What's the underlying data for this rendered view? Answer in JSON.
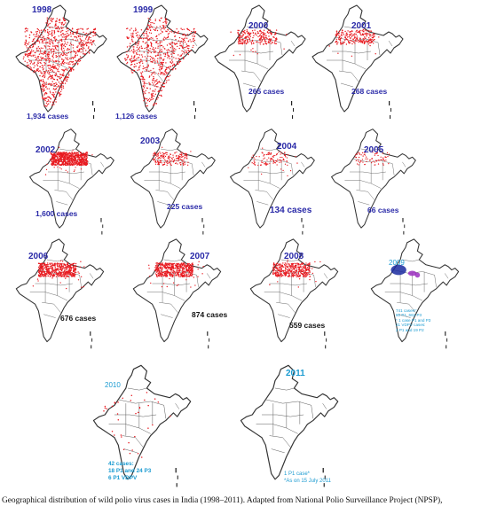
{
  "panels": [
    {
      "id": "1998",
      "year": "1998",
      "cases": "1,934 cases",
      "intensity": 1.0,
      "spread": "all"
    },
    {
      "id": "1999",
      "year": "1999",
      "cases": "1,126 cases",
      "intensity": 0.75,
      "spread": "all"
    },
    {
      "id": "2000",
      "year": "2000",
      "cases": "265 cases",
      "intensity": 0.25,
      "spread": "north"
    },
    {
      "id": "2001",
      "year": "2001",
      "cases": "268 cases",
      "intensity": 0.25,
      "spread": "north"
    },
    {
      "id": "2002",
      "year": "2002",
      "cases": "1,600 cases",
      "intensity": 0.9,
      "spread": "north"
    },
    {
      "id": "2003",
      "year": "2003",
      "cases": "225 cases",
      "intensity": 0.2,
      "spread": "north"
    },
    {
      "id": "2004",
      "year": "2004",
      "cases": "134 cases",
      "intensity": 0.12,
      "spread": "north"
    },
    {
      "id": "2005",
      "year": "2005",
      "cases": "66 cases",
      "intensity": 0.08,
      "spread": "north"
    },
    {
      "id": "2006",
      "year": "2006",
      "cases": "676 cases",
      "intensity": 0.6,
      "spread": "north"
    },
    {
      "id": "2007",
      "year": "2007",
      "cases": "874 cases",
      "intensity": 0.6,
      "spread": "north"
    },
    {
      "id": "2008",
      "year": "2008",
      "cases": "559 cases",
      "intensity": 0.45,
      "spread": "north"
    },
    {
      "id": "2009",
      "year": "2009",
      "cases": "",
      "intensity": 0.0,
      "spread": "blue",
      "note_lines": [
        "741 cases*:",
        "80 P1, 662 P3",
        "* 1 case P1 and P3",
        "21 VDPV cases:",
        "2 P1 and 19 P2"
      ]
    },
    {
      "id": "2010",
      "year": "2010",
      "cases": "",
      "intensity": 0.04,
      "spread": "sparse",
      "note_lines": [
        "42 cases:",
        "18 P1 and 24 P3",
        "6 P1 VDPV"
      ]
    },
    {
      "id": "2011",
      "year": "2011",
      "cases": "",
      "intensity": 0.0,
      "spread": "none",
      "note_lines": [
        "1 P1 case*",
        "*As on 15 July 2011"
      ]
    }
  ],
  "caption": "Geographical distribution of wild polio virus cases in India (1998–2011). Adapted from National Polio Surveillance Project (NPSP),",
  "colors": {
    "case_dot": "#e8191f",
    "title_blue": "#2a2aa8",
    "title_cyan": "#1b9bd1",
    "map_line": "#333333",
    "p1_blue": "#1a2aa0",
    "p3_purple": "#9b2fc0"
  }
}
